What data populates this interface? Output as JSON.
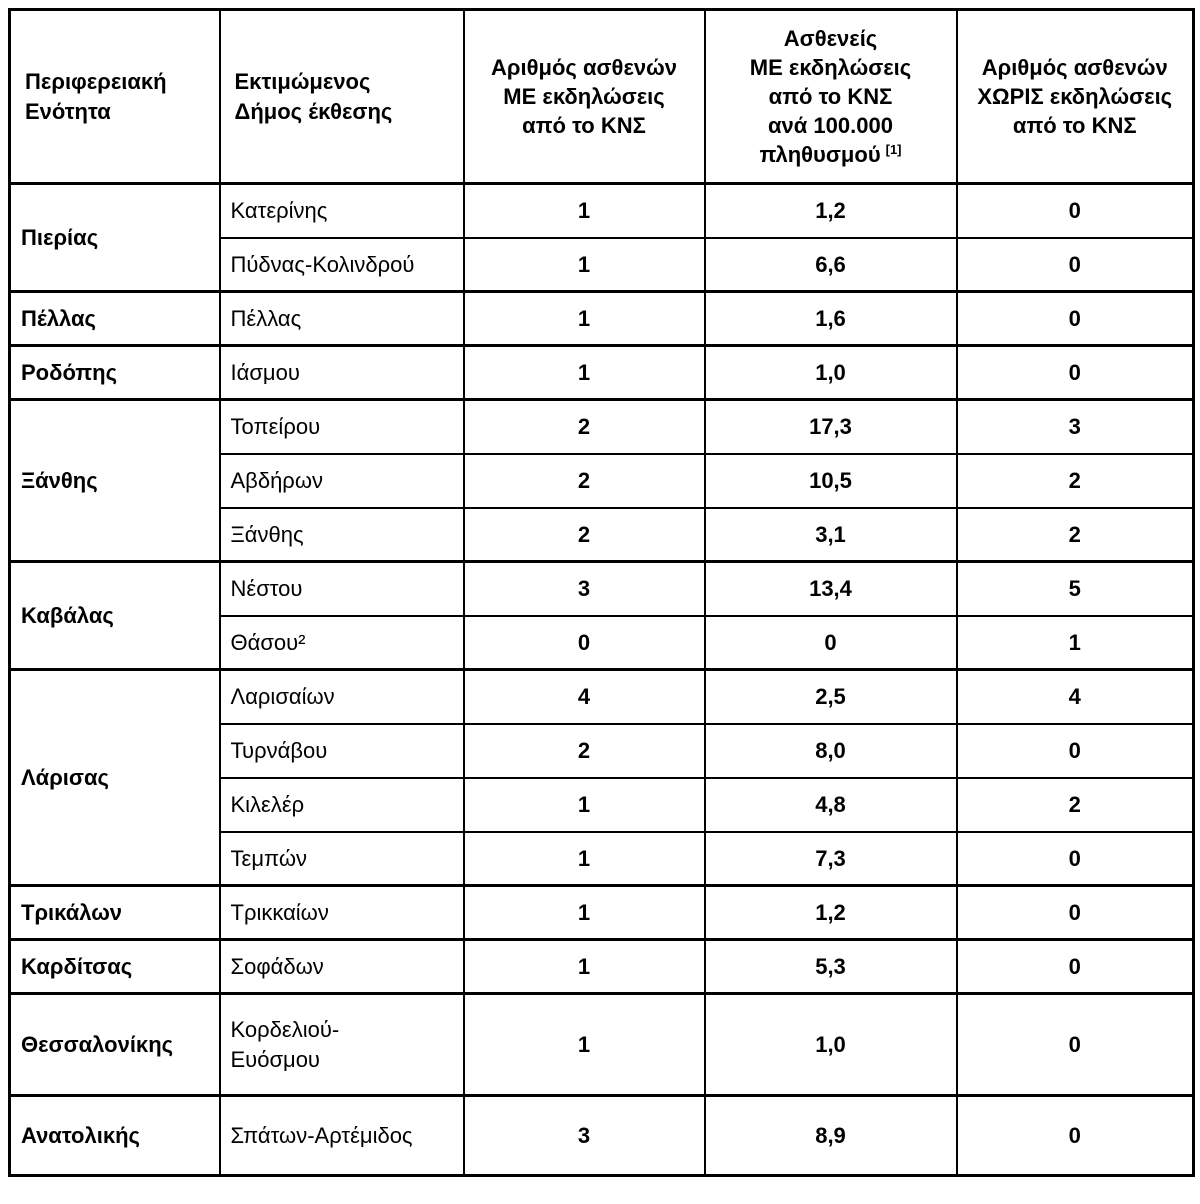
{
  "table": {
    "headers": [
      {
        "text": "Περιφερειακή\nΕνότητα"
      },
      {
        "text": "Εκτιμώμενος\nΔήμος έκθεσης"
      },
      {
        "text": "Αριθμός ασθενών\nΜΕ εκδηλώσεις\nαπό το ΚΝΣ"
      },
      {
        "text": "Ασθενείς\nΜΕ εκδηλώσεις\nαπό το ΚΝΣ\nανά 100.000\nπληθυσμού",
        "sup": "[1]"
      },
      {
        "text": "Αριθμός ασθενών\nΧΩΡΙΣ εκδηλώσεις\nαπό το ΚΝΣ"
      }
    ],
    "groups": [
      {
        "region": "Πιερίας",
        "rows": [
          {
            "municipality": "Κατερίνης",
            "with_cns": "1",
            "per_100k": "1,2",
            "without_cns": "0"
          },
          {
            "municipality": "Πύδνας-Κολινδρού",
            "with_cns": "1",
            "per_100k": "6,6",
            "without_cns": "0"
          }
        ]
      },
      {
        "region": "Πέλλας",
        "rows": [
          {
            "municipality": "Πέλλας",
            "with_cns": "1",
            "per_100k": "1,6",
            "without_cns": "0"
          }
        ]
      },
      {
        "region": "Ροδόπης",
        "rows": [
          {
            "municipality": "Ιάσμου",
            "with_cns": "1",
            "per_100k": "1,0",
            "without_cns": "0"
          }
        ]
      },
      {
        "region": "Ξάνθης",
        "rows": [
          {
            "municipality": "Τοπείρου",
            "with_cns": "2",
            "per_100k": "17,3",
            "without_cns": "3"
          },
          {
            "municipality": "Αβδήρων",
            "with_cns": "2",
            "per_100k": "10,5",
            "without_cns": "2"
          },
          {
            "municipality": "Ξάνθης",
            "with_cns": "2",
            "per_100k": "3,1",
            "without_cns": "2"
          }
        ]
      },
      {
        "region": "Καβάλας",
        "rows": [
          {
            "municipality": "Νέστου",
            "with_cns": "3",
            "per_100k": "13,4",
            "without_cns": "5"
          },
          {
            "municipality": "Θάσου²",
            "with_cns": "0",
            "per_100k": "0",
            "without_cns": "1"
          }
        ]
      },
      {
        "region": "Λάρισας",
        "rows": [
          {
            "municipality": "Λαρισαίων",
            "with_cns": "4",
            "per_100k": "2,5",
            "without_cns": "4"
          },
          {
            "municipality": "Τυρνάβου",
            "with_cns": "2",
            "per_100k": "8,0",
            "without_cns": "0"
          },
          {
            "municipality": "Κιλελέρ",
            "with_cns": "1",
            "per_100k": "4,8",
            "without_cns": "2"
          },
          {
            "municipality": "Τεμπών",
            "with_cns": "1",
            "per_100k": "7,3",
            "without_cns": "0"
          }
        ]
      },
      {
        "region": "Τρικάλων",
        "rows": [
          {
            "municipality": "Τρικκαίων",
            "with_cns": "1",
            "per_100k": "1,2",
            "without_cns": "0"
          }
        ]
      },
      {
        "region": "Καρδίτσας",
        "rows": [
          {
            "municipality": "Σοφάδων",
            "with_cns": "1",
            "per_100k": "5,3",
            "without_cns": "0"
          }
        ]
      },
      {
        "region": "Θεσσαλονίκης",
        "rows": [
          {
            "municipality": "Κορδελιού-\nΕυόσμου",
            "with_cns": "1",
            "per_100k": "1,0",
            "without_cns": "0"
          }
        ]
      },
      {
        "region": "Ανατολικής",
        "rows": [
          {
            "municipality": "Σπάτων-Αρτέμιδος",
            "with_cns": "3",
            "per_100k": "8,9",
            "without_cns": "0"
          }
        ]
      }
    ]
  }
}
